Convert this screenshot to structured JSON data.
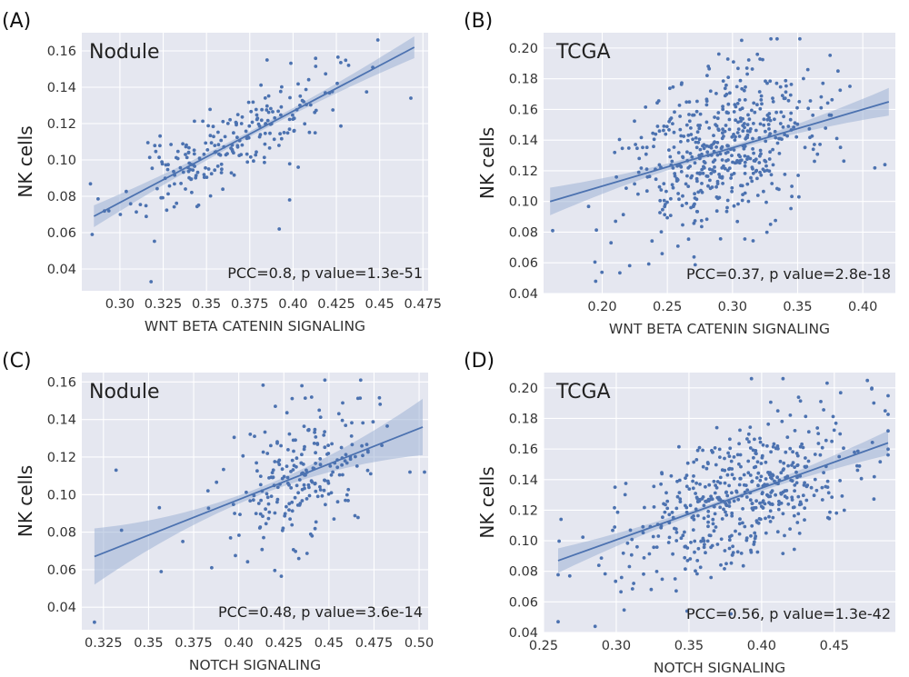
{
  "colors": {
    "panel_bg": "#e5e7f0",
    "grid": "#ffffff",
    "points": "#4c72b0",
    "line": "#4c72b0",
    "band": "#9fb3d6"
  },
  "chart_data": [
    {
      "type": "scatter",
      "panel": "(A)",
      "title": "Nodule",
      "xlabel": "WNT BETA CATENIN SIGNALING",
      "ylabel": "NK cells",
      "xlim": [
        0.278,
        0.478
      ],
      "ylim": [
        0.028,
        0.17
      ],
      "xticks": [
        0.275,
        0.3,
        0.325,
        0.35,
        0.375,
        0.4,
        0.425,
        0.45,
        0.475
      ],
      "xtick_labels": [
        "0.275",
        "0.30",
        "0.325",
        "0.35",
        "0.375",
        "0.40",
        "0.425",
        "0.45",
        "0.475"
      ],
      "yticks": [
        0.04,
        0.06,
        0.08,
        0.1,
        0.12,
        0.14,
        0.16
      ],
      "ytick_labels": [
        "0.04",
        "0.06",
        "0.08",
        "0.10",
        "0.12",
        "0.14",
        "0.16"
      ],
      "stat_text": "PCC=0.8, p value=1.3e-51",
      "grid": true,
      "fit": {
        "x0": 0.285,
        "y0": 0.069,
        "x1": 0.47,
        "y1": 0.162,
        "ci_edge": 0.006,
        "ci_center": 0.0015
      },
      "scatter": {
        "n": 230,
        "x_mean": 0.362,
        "x_sd": 0.03,
        "x_range": [
          0.283,
          0.47
        ],
        "resid_sd": 0.011,
        "seed": 11
      },
      "outliers": [
        [
          0.284,
          0.059
        ],
        [
          0.385,
          0.155
        ],
        [
          0.392,
          0.062
        ],
        [
          0.468,
          0.134
        ],
        [
          0.318,
          0.033
        ],
        [
          0.403,
          0.096
        ],
        [
          0.398,
          0.078
        ]
      ]
    },
    {
      "type": "scatter",
      "panel": "(B)",
      "title": "TCGA",
      "xlabel": "WNT BETA CATENIN SIGNALING",
      "ylabel": "NK cells",
      "xlim": [
        0.155,
        0.425
      ],
      "ylim": [
        0.04,
        0.21
      ],
      "xticks": [
        0.2,
        0.25,
        0.3,
        0.35,
        0.4
      ],
      "xtick_labels": [
        "0.20",
        "0.25",
        "0.30",
        "0.35",
        "0.40"
      ],
      "yticks": [
        0.04,
        0.06,
        0.08,
        0.1,
        0.12,
        0.14,
        0.16,
        0.18,
        0.2
      ],
      "ytick_labels": [
        "0.04",
        "0.06",
        "0.08",
        "0.10",
        "0.12",
        "0.14",
        "0.16",
        "0.18",
        "0.20"
      ],
      "stat_text": "PCC=0.37, p value=2.8e-18",
      "grid": true,
      "fit": {
        "x0": 0.16,
        "y0": 0.1,
        "x1": 0.42,
        "y1": 0.165,
        "ci_edge": 0.009,
        "ci_center": 0.0015
      },
      "scatter": {
        "n": 520,
        "x_mean": 0.29,
        "x_sd": 0.035,
        "x_range": [
          0.162,
          0.418
        ],
        "resid_sd": 0.025,
        "seed": 23
      },
      "outliers": [
        [
          0.307,
          0.205
        ],
        [
          0.162,
          0.081
        ],
        [
          0.195,
          0.048
        ],
        [
          0.417,
          0.124
        ],
        [
          0.381,
          0.185
        ],
        [
          0.362,
          0.134
        ],
        [
          0.246,
          0.066
        ]
      ]
    },
    {
      "type": "scatter",
      "panel": "(C)",
      "title": "Nodule",
      "xlabel": "NOTCH SIGNALING",
      "ylabel": "NK cells",
      "xlim": [
        0.313,
        0.505
      ],
      "ylim": [
        0.028,
        0.165
      ],
      "xticks": [
        0.325,
        0.35,
        0.375,
        0.4,
        0.425,
        0.45,
        0.475,
        0.5
      ],
      "xtick_labels": [
        "0.325",
        "0.35",
        "0.375",
        "0.40",
        "0.425",
        "0.45",
        "0.475",
        "0.50"
      ],
      "yticks": [
        0.04,
        0.06,
        0.08,
        0.1,
        0.12,
        0.14,
        0.16
      ],
      "ytick_labels": [
        "0.04",
        "0.06",
        "0.08",
        "0.10",
        "0.12",
        "0.14",
        "0.16"
      ],
      "stat_text": "PCC=0.48, p value=3.6e-14",
      "grid": true,
      "fit": {
        "x0": 0.32,
        "y0": 0.067,
        "x1": 0.502,
        "y1": 0.136,
        "ci_edge": 0.015,
        "ci_center": 0.002
      },
      "scatter": {
        "n": 230,
        "x_mean": 0.437,
        "x_sd": 0.02,
        "x_range": [
          0.35,
          0.5
        ],
        "resid_sd": 0.018,
        "seed": 37
      },
      "outliers": [
        [
          0.32,
          0.032
        ],
        [
          0.332,
          0.113
        ],
        [
          0.335,
          0.081
        ],
        [
          0.357,
          0.059
        ],
        [
          0.356,
          0.093
        ],
        [
          0.369,
          0.075
        ],
        [
          0.385,
          0.061
        ],
        [
          0.435,
          0.158
        ],
        [
          0.503,
          0.112
        ]
      ]
    },
    {
      "type": "scatter",
      "panel": "(D)",
      "title": "TCGA",
      "xlabel": "NOTCH SIGNALING",
      "ylabel": "NK cells",
      "xlim": [
        0.25,
        0.492
      ],
      "ylim": [
        0.04,
        0.21
      ],
      "xticks": [
        0.25,
        0.3,
        0.35,
        0.4,
        0.45
      ],
      "xtick_labels": [
        "0.25",
        "0.30",
        "0.35",
        "0.40",
        "0.45"
      ],
      "yticks": [
        0.04,
        0.06,
        0.08,
        0.1,
        0.12,
        0.14,
        0.16,
        0.18,
        0.2
      ],
      "ytick_labels": [
        "0.04",
        "0.06",
        "0.08",
        "0.10",
        "0.12",
        "0.14",
        "0.16",
        "0.18",
        "0.20"
      ],
      "stat_text": "PCC=0.56, p value=1.3e-42",
      "grid": true,
      "fit": {
        "x0": 0.26,
        "y0": 0.087,
        "x1": 0.487,
        "y1": 0.164,
        "ci_edge": 0.008,
        "ci_center": 0.0015
      },
      "scatter": {
        "n": 520,
        "x_mean": 0.385,
        "x_sd": 0.04,
        "x_range": [
          0.26,
          0.487
        ],
        "resid_sd": 0.022,
        "seed": 53
      },
      "outliers": [
        [
          0.26,
          0.047
        ],
        [
          0.393,
          0.206
        ],
        [
          0.262,
          0.114
        ],
        [
          0.268,
          0.077
        ],
        [
          0.485,
          0.185
        ]
      ]
    }
  ]
}
